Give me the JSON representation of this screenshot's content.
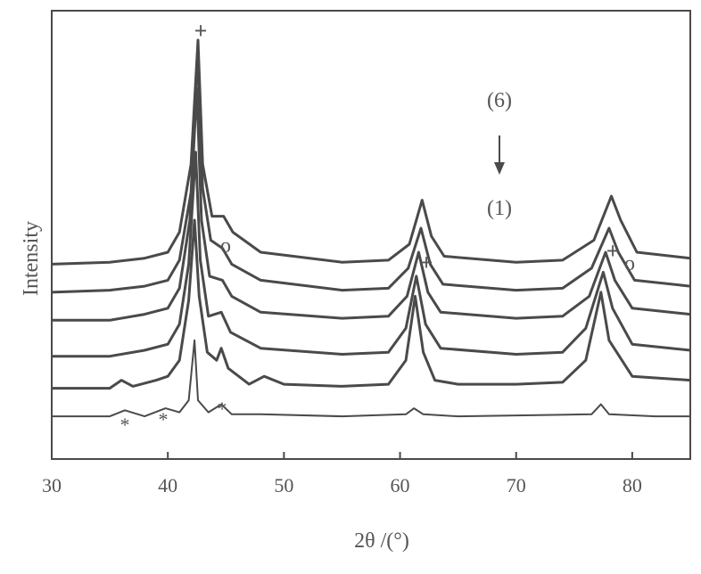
{
  "chart_data": {
    "type": "line",
    "title": "",
    "xlabel": "2θ /(°)",
    "ylabel": "Intensity",
    "xlim": [
      30,
      85
    ],
    "xticks": [
      30,
      40,
      50,
      60,
      70,
      80
    ],
    "ylim": [
      0,
      1
    ],
    "grid": false,
    "legend": "none",
    "line_color": "#4a4a4a",
    "series_note": "six stacked XRD patterns, labels (1) bottom to (6) top",
    "series": [
      {
        "values": [
          [
            30,
            0.06
          ],
          [
            35,
            0.06
          ],
          [
            36.3,
            0.075
          ],
          [
            38,
            0.06
          ],
          [
            39.8,
            0.08
          ],
          [
            41,
            0.07
          ],
          [
            41.8,
            0.1
          ],
          [
            42.3,
            0.25
          ],
          [
            42.6,
            0.1
          ],
          [
            43.5,
            0.07
          ],
          [
            44.6,
            0.09
          ],
          [
            45.5,
            0.065
          ],
          [
            48,
            0.065
          ],
          [
            55,
            0.06
          ],
          [
            60.5,
            0.065
          ],
          [
            61.2,
            0.08
          ],
          [
            62,
            0.065
          ],
          [
            65,
            0.06
          ],
          [
            76.5,
            0.065
          ],
          [
            77.3,
            0.09
          ],
          [
            78,
            0.065
          ],
          [
            82,
            0.06
          ],
          [
            85,
            0.06
          ]
        ]
      },
      {
        "values": [
          [
            30,
            0.13
          ],
          [
            35,
            0.13
          ],
          [
            36,
            0.15
          ],
          [
            37,
            0.135
          ],
          [
            39,
            0.15
          ],
          [
            40,
            0.16
          ],
          [
            41,
            0.2
          ],
          [
            41.8,
            0.35
          ],
          [
            42.3,
            0.55
          ],
          [
            42.7,
            0.36
          ],
          [
            43.4,
            0.22
          ],
          [
            44.2,
            0.2
          ],
          [
            44.6,
            0.23
          ],
          [
            45.2,
            0.18
          ],
          [
            47,
            0.14
          ],
          [
            48.3,
            0.16
          ],
          [
            50,
            0.14
          ],
          [
            55,
            0.135
          ],
          [
            59,
            0.14
          ],
          [
            60.5,
            0.2
          ],
          [
            61.3,
            0.36
          ],
          [
            62,
            0.22
          ],
          [
            63,
            0.15
          ],
          [
            65,
            0.14
          ],
          [
            70,
            0.14
          ],
          [
            74,
            0.145
          ],
          [
            76,
            0.2
          ],
          [
            77.3,
            0.37
          ],
          [
            78,
            0.25
          ],
          [
            80,
            0.16
          ],
          [
            85,
            0.15
          ]
        ]
      },
      {
        "values": [
          [
            30,
            0.21
          ],
          [
            35,
            0.21
          ],
          [
            38,
            0.225
          ],
          [
            40,
            0.24
          ],
          [
            41,
            0.29
          ],
          [
            41.8,
            0.44
          ],
          [
            42.4,
            0.72
          ],
          [
            42.8,
            0.45
          ],
          [
            43.5,
            0.31
          ],
          [
            44.6,
            0.32
          ],
          [
            45.4,
            0.27
          ],
          [
            48,
            0.23
          ],
          [
            55,
            0.215
          ],
          [
            59,
            0.22
          ],
          [
            60.5,
            0.28
          ],
          [
            61.4,
            0.41
          ],
          [
            62.2,
            0.29
          ],
          [
            63.5,
            0.23
          ],
          [
            70,
            0.215
          ],
          [
            74,
            0.22
          ],
          [
            76,
            0.28
          ],
          [
            77.5,
            0.42
          ],
          [
            78.3,
            0.33
          ],
          [
            80,
            0.24
          ],
          [
            85,
            0.225
          ]
        ]
      },
      {
        "values": [
          [
            30,
            0.3
          ],
          [
            35,
            0.3
          ],
          [
            38,
            0.315
          ],
          [
            40,
            0.33
          ],
          [
            41,
            0.38
          ],
          [
            41.9,
            0.55
          ],
          [
            42.5,
            0.88
          ],
          [
            42.9,
            0.55
          ],
          [
            43.6,
            0.41
          ],
          [
            44.7,
            0.4
          ],
          [
            45.5,
            0.36
          ],
          [
            48,
            0.32
          ],
          [
            55,
            0.305
          ],
          [
            59,
            0.31
          ],
          [
            60.6,
            0.36
          ],
          [
            61.6,
            0.47
          ],
          [
            62.4,
            0.37
          ],
          [
            63.5,
            0.32
          ],
          [
            70,
            0.305
          ],
          [
            74,
            0.31
          ],
          [
            76.3,
            0.36
          ],
          [
            77.7,
            0.47
          ],
          [
            78.5,
            0.4
          ],
          [
            80,
            0.33
          ],
          [
            85,
            0.315
          ]
        ]
      },
      {
        "values": [
          [
            30,
            0.37
          ],
          [
            35,
            0.375
          ],
          [
            38,
            0.385
          ],
          [
            40,
            0.4
          ],
          [
            41,
            0.45
          ],
          [
            42,
            0.62
          ],
          [
            42.6,
            0.97
          ],
          [
            43,
            0.63
          ],
          [
            43.7,
            0.5
          ],
          [
            44.7,
            0.48
          ],
          [
            45.5,
            0.44
          ],
          [
            48,
            0.4
          ],
          [
            55,
            0.375
          ],
          [
            59,
            0.38
          ],
          [
            60.7,
            0.43
          ],
          [
            61.8,
            0.53
          ],
          [
            62.6,
            0.44
          ],
          [
            63.7,
            0.39
          ],
          [
            70,
            0.375
          ],
          [
            74,
            0.38
          ],
          [
            76.5,
            0.43
          ],
          [
            78,
            0.53
          ],
          [
            78.8,
            0.47
          ],
          [
            80.2,
            0.4
          ],
          [
            85,
            0.385
          ]
        ]
      },
      {
        "values": [
          [
            30,
            0.44
          ],
          [
            35,
            0.445
          ],
          [
            38,
            0.455
          ],
          [
            40,
            0.47
          ],
          [
            41,
            0.52
          ],
          [
            42,
            0.69
          ],
          [
            42.6,
            1.0
          ],
          [
            43,
            0.69
          ],
          [
            43.8,
            0.56
          ],
          [
            44.8,
            0.56
          ],
          [
            45.6,
            0.52
          ],
          [
            48,
            0.47
          ],
          [
            55,
            0.445
          ],
          [
            59,
            0.45
          ],
          [
            60.8,
            0.49
          ],
          [
            61.9,
            0.6
          ],
          [
            62.7,
            0.51
          ],
          [
            63.8,
            0.46
          ],
          [
            70,
            0.445
          ],
          [
            74,
            0.45
          ],
          [
            76.7,
            0.5
          ],
          [
            78.2,
            0.61
          ],
          [
            79,
            0.55
          ],
          [
            80.4,
            0.47
          ],
          [
            85,
            0.455
          ]
        ]
      }
    ],
    "annotations": {
      "plus_marks": [
        "+",
        "+",
        "+"
      ],
      "circle_marks": [
        "o",
        "o"
      ],
      "star_marks": [
        "*",
        "*",
        "*"
      ],
      "order_top": "(6)",
      "order_arrow": "↓",
      "order_bottom": "(1)"
    }
  }
}
